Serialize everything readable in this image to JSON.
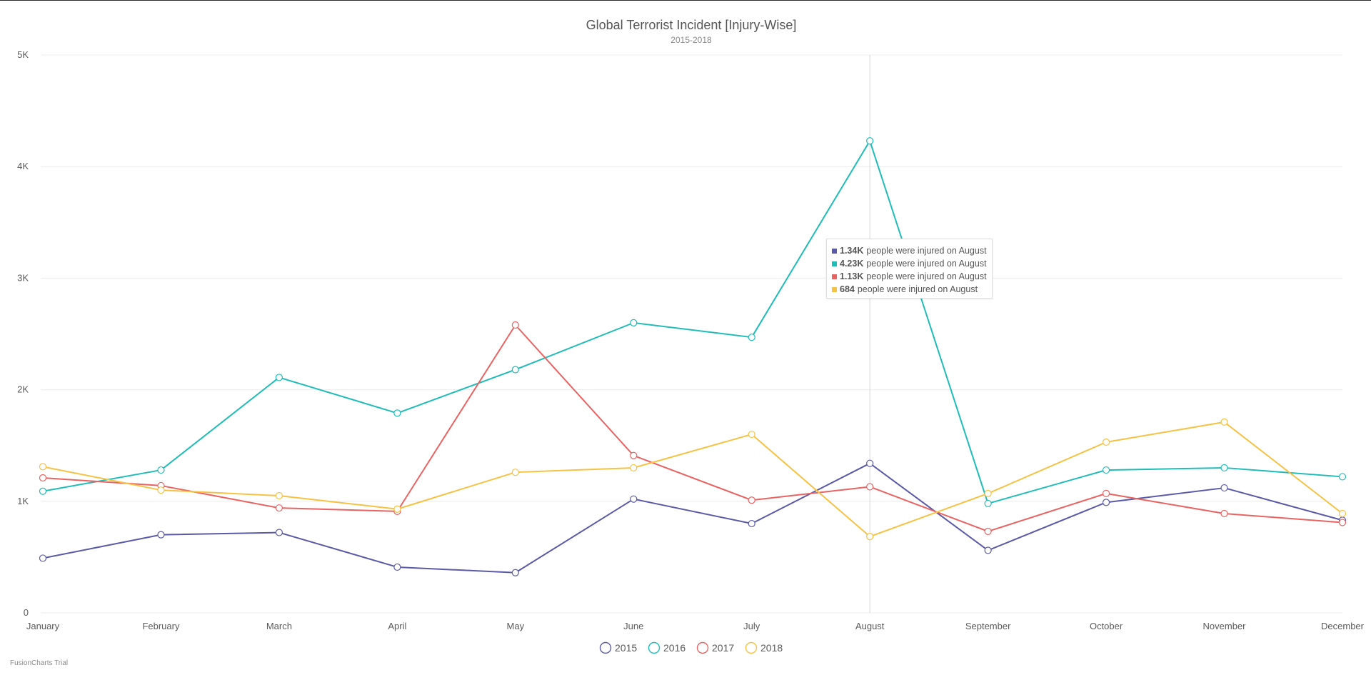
{
  "chart_data": {
    "type": "line",
    "title": "Global Terrorist Incident [Injury-Wise]",
    "subtitle": "2015-2018",
    "categories": [
      "January",
      "February",
      "March",
      "April",
      "May",
      "June",
      "July",
      "August",
      "September",
      "October",
      "November",
      "December"
    ],
    "ylim": [
      0,
      5000
    ],
    "yticks": [
      0,
      1000,
      2000,
      3000,
      4000,
      5000
    ],
    "ytick_labels": [
      "0",
      "1K",
      "2K",
      "3K",
      "4K",
      "5K"
    ],
    "grid": true,
    "legend_position": "bottom-center",
    "series": [
      {
        "name": "2015",
        "color": "#5b5aa8",
        "values": [
          490,
          700,
          720,
          410,
          360,
          1020,
          800,
          1340,
          560,
          990,
          1120,
          830
        ]
      },
      {
        "name": "2016",
        "color": "#1fbcb8",
        "values": [
          1090,
          1280,
          2110,
          1790,
          2180,
          2600,
          2470,
          4230,
          980,
          1280,
          1300,
          1220
        ]
      },
      {
        "name": "2017",
        "color": "#ea6363",
        "values": [
          1210,
          1140,
          940,
          910,
          2580,
          1410,
          1010,
          1130,
          730,
          1070,
          890,
          810
        ]
      },
      {
        "name": "2018",
        "color": "#f6c244",
        "values": [
          1310,
          1100,
          1050,
          930,
          1260,
          1300,
          1600,
          684,
          1070,
          1530,
          1710,
          890
        ]
      }
    ],
    "highlight_category": "August",
    "tooltip": [
      {
        "color": "#5b5aa8",
        "value": "1.34K",
        "text": "people were injured on August"
      },
      {
        "color": "#1fbcb8",
        "value": "4.23K",
        "text": "people were injured on August"
      },
      {
        "color": "#ea6363",
        "value": "1.13K",
        "text": "people were injured on August"
      },
      {
        "color": "#f6c244",
        "value": "684",
        "text": "people were injured on August"
      }
    ]
  },
  "watermark": "FusionCharts Trial"
}
